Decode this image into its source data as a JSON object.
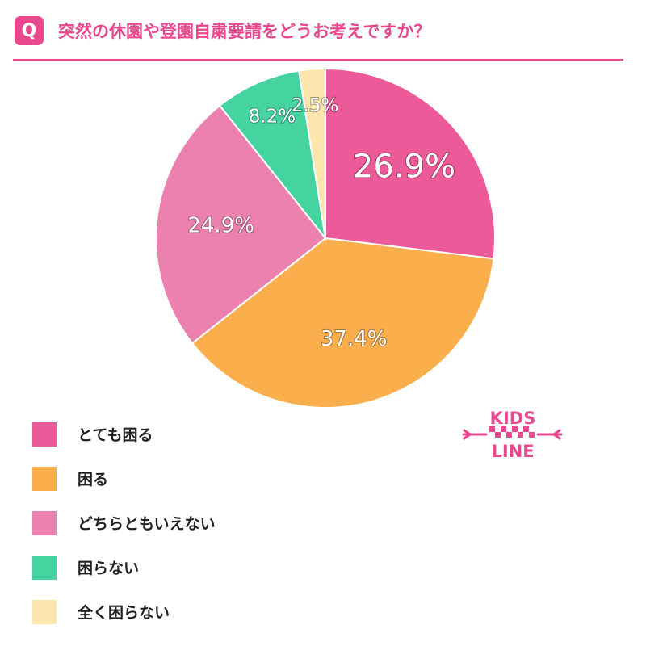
{
  "header": {
    "badge": "Q",
    "question": "突然の休園や登園自粛要請をどうお考えですか？"
  },
  "logo": {
    "line1": "KIDS",
    "line2": "LINE",
    "color": "#e8488e"
  },
  "chart_data": {
    "type": "pie",
    "title": "",
    "start_angle_deg": 0,
    "direction": "clockwise",
    "legend_position": "bottom-left",
    "slices": [
      {
        "label": "とても困る",
        "value": 26.9,
        "display": "26.9%",
        "color": "#ec5a99"
      },
      {
        "label": "困る",
        "value": 37.4,
        "display": "37.4%",
        "color": "#fbae4c"
      },
      {
        "label": "どちらともいえない",
        "value": 24.9,
        "display": "24.9%",
        "color": "#ec80ae"
      },
      {
        "label": "困らない",
        "value": 8.2,
        "display": "8.2%",
        "color": "#45d3a0"
      },
      {
        "label": "全く困らない",
        "value": 2.5,
        "display": "2.5%",
        "color": "#fde5ae"
      }
    ]
  }
}
